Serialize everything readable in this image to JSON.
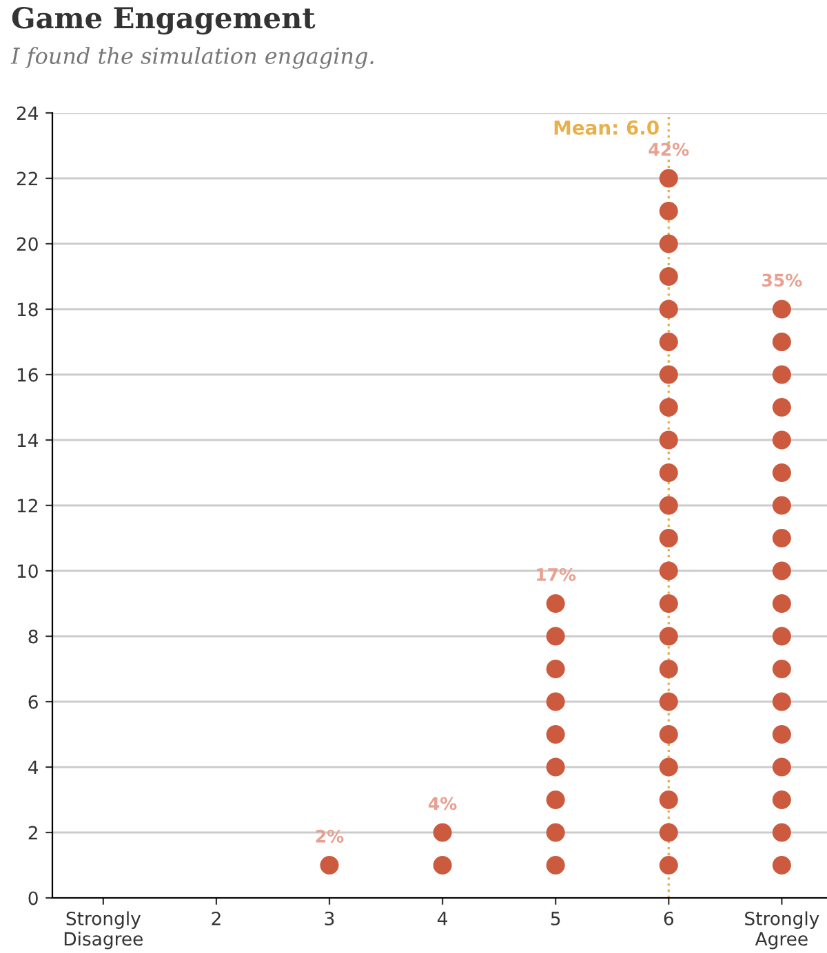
{
  "chart_data": {
    "type": "scatter",
    "title": "Game Engagement",
    "subtitle": "I found the simulation engaging.",
    "series": [
      {
        "color": "#cc5a3f",
        "x": [
          3,
          4,
          4,
          5,
          5,
          5,
          5,
          5,
          5,
          5,
          5,
          5,
          6,
          6,
          6,
          6,
          6,
          6,
          6,
          6,
          6,
          6,
          6,
          6,
          6,
          6,
          6,
          6,
          6,
          6,
          6,
          6,
          6,
          6,
          7,
          7,
          7,
          7,
          7,
          7,
          7,
          7,
          7,
          7,
          7,
          7,
          7,
          7,
          7,
          7,
          7,
          7
        ],
        "values": [
          1,
          1,
          2,
          1,
          2,
          3,
          4,
          5,
          6,
          7,
          8,
          9,
          1,
          2,
          3,
          4,
          5,
          6,
          7,
          8,
          9,
          10,
          11,
          12,
          13,
          14,
          15,
          16,
          17,
          18,
          19,
          20,
          21,
          22,
          1,
          2,
          3,
          4,
          5,
          6,
          7,
          8,
          9,
          10,
          11,
          12,
          13,
          14,
          15,
          16,
          17,
          18
        ]
      }
    ],
    "marker": "circle",
    "xlim": [
      0.55,
      7.4
    ],
    "xticks": [
      {
        "value": 1,
        "label": "Strongly\nDisagree"
      },
      2,
      3,
      4,
      5,
      6,
      {
        "value": 7,
        "label": "Strongly\nAgree"
      }
    ],
    "ylim": [
      0,
      24
    ],
    "yticks": [
      0,
      2,
      4,
      6,
      8,
      10,
      12,
      14,
      16,
      18,
      20,
      22,
      24
    ],
    "grid": "y",
    "ref_lines": [
      {
        "axis": "x",
        "value": 6,
        "label": "Mean: 6.0",
        "color": "#e8b04a",
        "line_style": "dotted"
      }
    ],
    "annotations": [
      {
        "text": "2%",
        "x": 3,
        "y": 1
      },
      {
        "text": "4%",
        "x": 4,
        "y": 2
      },
      {
        "text": "17%",
        "x": 5,
        "y": 9
      },
      {
        "text": "42%",
        "x": 6,
        "y": 22
      },
      {
        "text": "35%",
        "x": 7,
        "y": 18
      }
    ]
  }
}
